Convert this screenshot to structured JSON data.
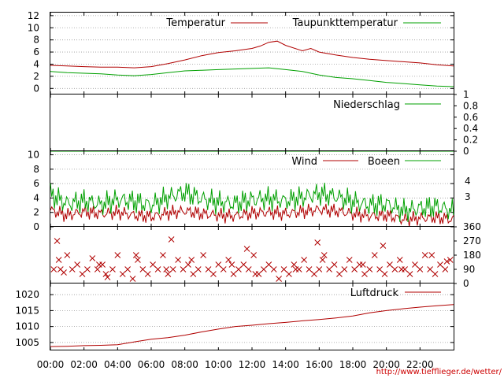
{
  "source_link": "http://www.tiefflieger.de/wetter/",
  "colors": {
    "red": "#b00000",
    "green": "#00a000",
    "axis": "#000000",
    "grid": "#9a9a9a",
    "link": "#cc0000"
  },
  "x_axis": {
    "ticks": [
      0,
      2,
      4,
      6,
      8,
      10,
      12,
      14,
      16,
      18,
      20,
      22
    ],
    "tick_labels": [
      "00:00",
      "02:00",
      "04:00",
      "06:00",
      "08:00",
      "10:00",
      "12:00",
      "14:00",
      "16:00",
      "18:00",
      "20:00",
      "22:00"
    ],
    "range": [
      0,
      24
    ]
  },
  "chart_data": [
    {
      "id": "temperature",
      "type": "line",
      "ylim": [
        -1,
        12.5
      ],
      "y_ticks": [
        0,
        2,
        4,
        6,
        8,
        10,
        12
      ],
      "grid": true,
      "legend_position": "top",
      "series": [
        {
          "name": "Temperatur",
          "color": "#b00000",
          "x": [
            0,
            1,
            2,
            3,
            4,
            5,
            6,
            7,
            8,
            9,
            10,
            11,
            12,
            12.5,
            13,
            13.5,
            14,
            15,
            15.5,
            16,
            17,
            18,
            19,
            20,
            21,
            22,
            23,
            24
          ],
          "y": [
            3.8,
            3.7,
            3.6,
            3.5,
            3.5,
            3.4,
            3.6,
            4.1,
            4.7,
            5.4,
            5.9,
            6.2,
            6.6,
            7.0,
            7.6,
            7.8,
            7.1,
            6.2,
            6.6,
            6.0,
            5.5,
            5.1,
            4.8,
            4.6,
            4.4,
            4.2,
            3.9,
            3.7
          ]
        },
        {
          "name": "Taupunkttemperatur",
          "color": "#00a000",
          "x": [
            0,
            1,
            2,
            3,
            4,
            5,
            6,
            7,
            8,
            9,
            10,
            11,
            12,
            13,
            14,
            15,
            16,
            17,
            18,
            19,
            20,
            21,
            22,
            23,
            24
          ],
          "y": [
            2.8,
            2.6,
            2.5,
            2.4,
            2.2,
            2.1,
            2.3,
            2.6,
            2.9,
            3.0,
            3.1,
            3.2,
            3.3,
            3.4,
            3.1,
            2.8,
            2.2,
            1.8,
            1.6,
            1.3,
            1.0,
            0.8,
            0.6,
            0.4,
            0.3
          ]
        }
      ]
    },
    {
      "id": "precipitation",
      "type": "line",
      "ylim": [
        0,
        1
      ],
      "y_ticks": [
        0,
        0.2,
        0.4,
        0.6,
        0.8,
        1
      ],
      "y_tick_labels": [
        "0",
        "0.2",
        "0.4",
        "0.6",
        "0.8",
        "1"
      ],
      "grid": false,
      "legend_position": "top-right",
      "series": [
        {
          "name": "Niederschlag",
          "color": "#00a000",
          "x": [
            0,
            24
          ],
          "y": [
            0,
            0
          ]
        }
      ]
    },
    {
      "id": "wind",
      "type": "line",
      "ylim": [
        0,
        10.5
      ],
      "y_ticks": [
        0,
        2,
        4,
        6,
        8,
        10
      ],
      "right_tick_labels": [
        "3",
        "4"
      ],
      "grid": true,
      "legend_position": "top-right",
      "series": [
        {
          "name": "Wind",
          "color": "#b00000",
          "x": [
            0,
            1,
            2,
            3,
            4,
            5,
            6,
            7,
            8,
            9,
            10,
            11,
            12,
            13,
            14,
            15,
            16,
            17,
            18,
            19,
            20,
            21,
            22,
            23,
            24
          ],
          "y": [
            2.3,
            1.6,
            2.1,
            1.8,
            2.0,
            1.6,
            1.4,
            1.9,
            2.2,
            1.8,
            1.6,
            1.5,
            1.9,
            2.0,
            1.8,
            2.1,
            2.4,
            2.2,
            1.8,
            1.5,
            1.6,
            1.0,
            1.2,
            1.3,
            1.0
          ]
        },
        {
          "name": "Boeen",
          "color": "#00a000",
          "x": [
            0,
            1,
            2,
            3,
            4,
            5,
            6,
            7,
            8,
            9,
            10,
            11,
            12,
            13,
            14,
            15,
            16,
            17,
            18,
            19,
            20,
            21,
            22,
            23,
            24
          ],
          "y": [
            4.5,
            3.2,
            3.6,
            3.1,
            3.8,
            3.5,
            3.0,
            4.1,
            4.8,
            3.9,
            3.4,
            3.2,
            3.8,
            3.9,
            3.6,
            4.1,
            4.6,
            4.2,
            3.5,
            3.0,
            3.2,
            2.2,
            2.6,
            2.8,
            2.2
          ]
        }
      ]
    },
    {
      "id": "wind_direction",
      "type": "scatter",
      "ylim": [
        0,
        360
      ],
      "y_tick_labels": [
        "0",
        "90",
        "180",
        "270",
        "360"
      ],
      "y_ticks": [
        0,
        90,
        180,
        270,
        360
      ],
      "marker": "x",
      "series": [
        {
          "color": "#b00000",
          "x": [
            0.2,
            0.5,
            0.8,
            1.0,
            1.3,
            1.6,
            1.9,
            2.2,
            2.5,
            2.8,
            3.1,
            3.4,
            3.7,
            4.0,
            4.3,
            4.6,
            4.9,
            5.2,
            5.5,
            5.8,
            6.1,
            6.4,
            6.7,
            7.0,
            7.3,
            7.6,
            7.9,
            8.2,
            8.5,
            8.8,
            9.1,
            9.4,
            9.7,
            10.0,
            10.3,
            10.6,
            10.9,
            11.2,
            11.5,
            11.8,
            12.1,
            12.4,
            12.7,
            13.0,
            13.3,
            13.6,
            13.9,
            14.2,
            14.5,
            14.8,
            15.1,
            15.4,
            15.7,
            16.0,
            16.3,
            16.6,
            16.9,
            17.2,
            17.5,
            17.8,
            18.1,
            18.4,
            18.7,
            19.0,
            19.3,
            19.6,
            19.9,
            20.2,
            20.5,
            20.8,
            21.1,
            21.4,
            21.7,
            22.0,
            22.3,
            22.6,
            22.9,
            23.2,
            23.5,
            23.8,
            0.6,
            3.3,
            5.1,
            6.9,
            8.4,
            10.8,
            12.2,
            14.6,
            16.2,
            18.6,
            20.9,
            22.7,
            23.6,
            0.4,
            2.9,
            7.2,
            11.7,
            15.9,
            19.8
          ],
          "y": [
            90,
            150,
            70,
            180,
            90,
            120,
            60,
            90,
            160,
            90,
            120,
            40,
            90,
            180,
            60,
            90,
            30,
            150,
            90,
            60,
            120,
            90,
            180,
            60,
            90,
            150,
            90,
            120,
            60,
            90,
            180,
            90,
            60,
            120,
            90,
            150,
            60,
            90,
            120,
            90,
            180,
            60,
            90,
            120,
            90,
            30,
            90,
            60,
            120,
            90,
            150,
            90,
            60,
            90,
            180,
            90,
            120,
            60,
            90,
            150,
            90,
            120,
            60,
            90,
            180,
            90,
            60,
            120,
            90,
            150,
            90,
            60,
            120,
            90,
            180,
            90,
            60,
            120,
            90,
            150,
            90,
            60,
            180,
            90,
            150,
            120,
            60,
            90,
            150,
            120,
            90,
            180,
            140,
            270,
            120,
            280,
            220,
            260,
            240
          ]
        }
      ]
    },
    {
      "id": "pressure",
      "type": "line",
      "ylim": [
        1002.5,
        1023.5
      ],
      "y_ticks": [
        1005,
        1010,
        1015,
        1020
      ],
      "grid": true,
      "legend_position": "top-right",
      "series": [
        {
          "name": "Luftdruck",
          "color": "#b00000",
          "x": [
            0,
            1,
            2,
            3,
            4,
            5,
            6,
            7,
            8,
            9,
            10,
            11,
            12,
            13,
            14,
            15,
            16,
            17,
            18,
            19,
            20,
            21,
            22,
            23,
            24
          ],
          "y": [
            1003.7,
            1003.8,
            1004.0,
            1004.1,
            1004.3,
            1005.2,
            1006.0,
            1006.5,
            1007.3,
            1008.3,
            1009.2,
            1010.0,
            1010.4,
            1010.9,
            1011.3,
            1011.8,
            1012.2,
            1012.7,
            1013.3,
            1014.3,
            1015.0,
            1015.6,
            1016.1,
            1016.5,
            1016.9
          ]
        }
      ]
    }
  ]
}
